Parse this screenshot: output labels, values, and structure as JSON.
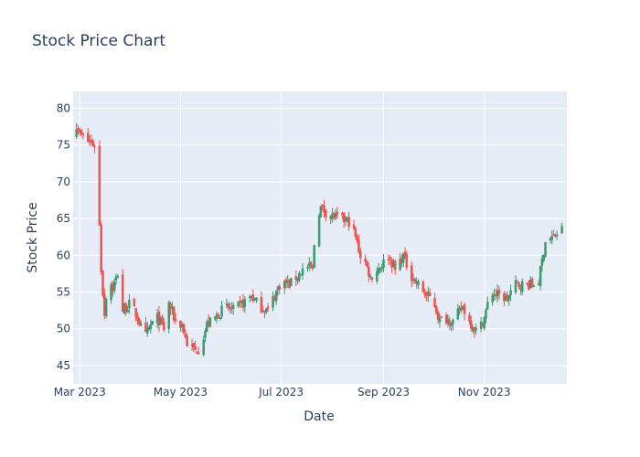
{
  "chart_data": {
    "type": "candlestick",
    "title": "Stock Price Chart",
    "xlabel": "Date",
    "ylabel": "Stock Price",
    "x_range": [
      "2023-02-25",
      "2023-12-21"
    ],
    "ylim": [
      42.5,
      82.3
    ],
    "y_ticks": [
      45,
      50,
      55,
      60,
      65,
      70,
      75,
      80
    ],
    "x_ticks": [
      {
        "date": "2023-03-01",
        "label": "Mar 2023"
      },
      {
        "date": "2023-05-01",
        "label": "May 2023"
      },
      {
        "date": "2023-07-01",
        "label": "Jul 2023"
      },
      {
        "date": "2023-09-01",
        "label": "Sep 2023"
      },
      {
        "date": "2023-11-01",
        "label": "Nov 2023"
      }
    ],
    "grid": true,
    "legend": "none",
    "colors": {
      "increasing": "#3d9970",
      "decreasing": "#ef5350",
      "plot_bg": "#e5ecf6",
      "grid": "#ffffff",
      "text": "#2a3f5f"
    },
    "anchors": [
      [
        "2023-02-26",
        78.5
      ],
      [
        "2023-03-01",
        76.5
      ],
      [
        "2023-03-06",
        75.5
      ],
      [
        "2023-03-10",
        75.0
      ],
      [
        "2023-03-12",
        71.0
      ],
      [
        "2023-03-13",
        64.0
      ],
      [
        "2023-03-14",
        58.0
      ],
      [
        "2023-03-16",
        52.0
      ],
      [
        "2023-03-18",
        57.0
      ],
      [
        "2023-03-21",
        55.5
      ],
      [
        "2023-03-24",
        57.5
      ],
      [
        "2023-03-27",
        52.5
      ],
      [
        "2023-04-01",
        53.5
      ],
      [
        "2023-04-06",
        51.0
      ],
      [
        "2023-04-09",
        48.5
      ],
      [
        "2023-04-13",
        50.5
      ],
      [
        "2023-04-17",
        51.5
      ],
      [
        "2023-04-21",
        50.0
      ],
      [
        "2023-04-23",
        54.0
      ],
      [
        "2023-04-28",
        51.0
      ],
      [
        "2023-05-02",
        50.5
      ],
      [
        "2023-05-05",
        48.0
      ],
      [
        "2023-05-10",
        47.0
      ],
      [
        "2023-05-13",
        47.5
      ],
      [
        "2023-05-17",
        50.5
      ],
      [
        "2023-05-22",
        51.5
      ],
      [
        "2023-05-28",
        53.0
      ],
      [
        "2023-06-02",
        52.5
      ],
      [
        "2023-06-08",
        53.5
      ],
      [
        "2023-06-13",
        54.5
      ],
      [
        "2023-06-18",
        53.0
      ],
      [
        "2023-06-23",
        52.5
      ],
      [
        "2023-06-27",
        54.5
      ],
      [
        "2023-07-01",
        56.5
      ],
      [
        "2023-07-06",
        56.0
      ],
      [
        "2023-07-12",
        57.5
      ],
      [
        "2023-07-16",
        58.5
      ],
      [
        "2023-07-20",
        58.0
      ],
      [
        "2023-07-22",
        65.0
      ],
      [
        "2023-07-25",
        66.5
      ],
      [
        "2023-07-30",
        65.5
      ],
      [
        "2023-08-05",
        65.0
      ],
      [
        "2023-08-12",
        64.5
      ],
      [
        "2023-08-15",
        62.5
      ],
      [
        "2023-08-18",
        60.0
      ],
      [
        "2023-08-21",
        59.0
      ],
      [
        "2023-08-24",
        57.0
      ],
      [
        "2023-08-28",
        58.0
      ],
      [
        "2023-09-01",
        59.0
      ],
      [
        "2023-09-04",
        60.0
      ],
      [
        "2023-09-08",
        58.0
      ],
      [
        "2023-09-13",
        60.0
      ],
      [
        "2023-09-17",
        57.5
      ],
      [
        "2023-09-22",
        56.0
      ],
      [
        "2023-09-27",
        54.5
      ],
      [
        "2023-10-01",
        54.0
      ],
      [
        "2023-10-05",
        51.0
      ],
      [
        "2023-10-08",
        51.5
      ],
      [
        "2023-10-13",
        51.0
      ],
      [
        "2023-10-16",
        52.0
      ],
      [
        "2023-10-19",
        53.0
      ],
      [
        "2023-10-23",
        51.0
      ],
      [
        "2023-10-28",
        49.5
      ],
      [
        "2023-11-01",
        51.5
      ],
      [
        "2023-11-05",
        55.0
      ],
      [
        "2023-11-10",
        54.5
      ],
      [
        "2023-11-15",
        54.0
      ],
      [
        "2023-11-19",
        56.0
      ],
      [
        "2023-11-25",
        56.0
      ],
      [
        "2023-11-30",
        56.0
      ],
      [
        "2023-12-04",
        56.5
      ],
      [
        "2023-12-08",
        62.0
      ],
      [
        "2023-12-13",
        62.5
      ],
      [
        "2023-12-18",
        63.5
      ]
    ]
  }
}
